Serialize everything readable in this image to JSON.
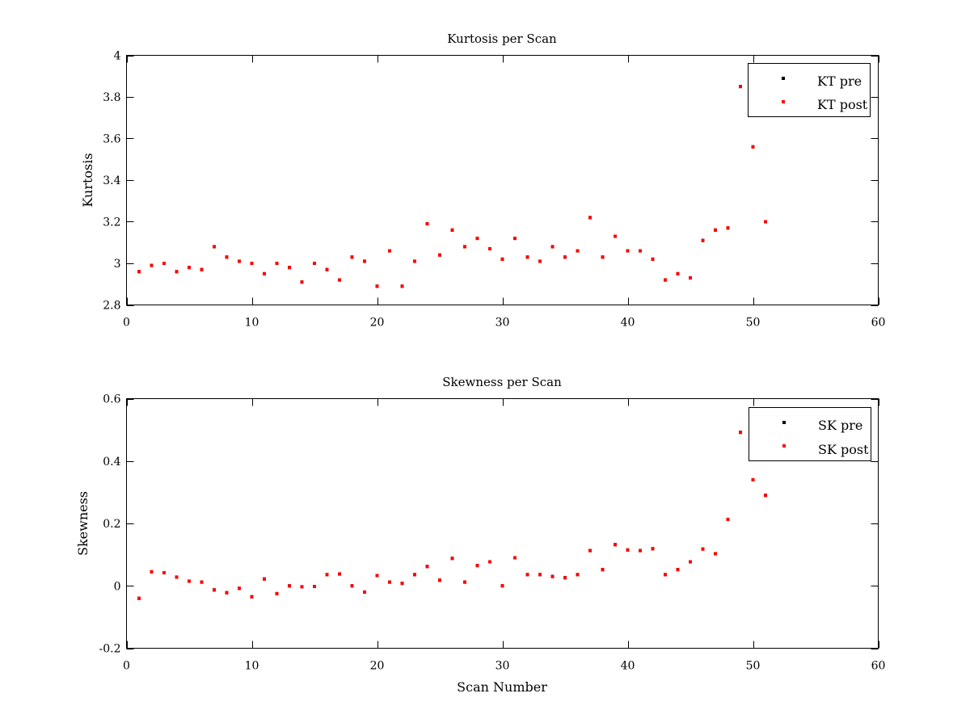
{
  "chart_data": [
    {
      "type": "scatter",
      "title": "Kurtosis per Scan",
      "xlabel": "",
      "ylabel": "Kurtosis",
      "xlim": [
        0,
        60
      ],
      "ylim": [
        2.8,
        4
      ],
      "xticks": [
        0,
        10,
        20,
        30,
        40,
        50,
        60
      ],
      "xtick_labels": [
        "0",
        "10",
        "20",
        "30",
        "40",
        "50",
        "60"
      ],
      "yticks": [
        2.8,
        3.0,
        3.2,
        3.4,
        3.6,
        3.8,
        4.0
      ],
      "ytick_labels": [
        "2.8",
        "3",
        "3.2",
        "3.4",
        "3.6",
        "3.8",
        "4"
      ],
      "grid": false,
      "legend": "top-right",
      "x": [
        1,
        2,
        3,
        4,
        5,
        6,
        7,
        8,
        9,
        10,
        11,
        12,
        13,
        14,
        15,
        16,
        17,
        18,
        19,
        20,
        21,
        22,
        23,
        24,
        25,
        26,
        27,
        28,
        29,
        30,
        31,
        32,
        33,
        34,
        35,
        36,
        37,
        38,
        39,
        40,
        41,
        42,
        43,
        44,
        45,
        46,
        47,
        48,
        49,
        50,
        51
      ],
      "series": [
        {
          "name": "KT pre",
          "color": "#000000",
          "values": [
            2.96,
            2.99,
            3.0,
            2.96,
            2.98,
            2.97,
            3.08,
            3.03,
            3.01,
            3.0,
            2.95,
            3.0,
            2.98,
            2.91,
            3.0,
            2.97,
            2.92,
            3.03,
            3.01,
            2.89,
            3.06,
            2.89,
            3.01,
            3.19,
            3.04,
            3.16,
            3.08,
            3.12,
            3.07,
            3.02,
            3.12,
            3.03,
            3.01,
            3.08,
            3.03,
            3.06,
            3.22,
            3.03,
            3.13,
            3.06,
            3.06,
            3.02,
            2.92,
            2.95,
            2.93,
            3.11,
            3.16,
            3.17,
            3.85,
            3.56,
            3.2
          ]
        },
        {
          "name": "KT post",
          "color": "#ff0000",
          "values": [
            2.96,
            2.99,
            3.0,
            2.96,
            2.98,
            2.97,
            3.08,
            3.03,
            3.01,
            3.0,
            2.95,
            3.0,
            2.98,
            2.91,
            3.0,
            2.97,
            2.92,
            3.03,
            3.01,
            2.89,
            3.06,
            2.89,
            3.01,
            3.19,
            3.04,
            3.16,
            3.08,
            3.12,
            3.07,
            3.02,
            3.12,
            3.03,
            3.01,
            3.08,
            3.03,
            3.06,
            3.22,
            3.03,
            3.13,
            3.06,
            3.06,
            3.02,
            2.92,
            2.95,
            2.93,
            3.11,
            3.16,
            3.17,
            3.85,
            3.56,
            3.2
          ]
        }
      ]
    },
    {
      "type": "scatter",
      "title": "Skewness per Scan",
      "xlabel": "Scan Number",
      "ylabel": "Skewness",
      "xlim": [
        0,
        60
      ],
      "ylim": [
        -0.2,
        0.6
      ],
      "xticks": [
        0,
        10,
        20,
        30,
        40,
        50,
        60
      ],
      "xtick_labels": [
        "0",
        "10",
        "20",
        "30",
        "40",
        "50",
        "60"
      ],
      "yticks": [
        -0.2,
        0.0,
        0.2,
        0.4,
        0.6
      ],
      "ytick_labels": [
        "-0.2",
        "0",
        "0.2",
        "0.4",
        "0.6"
      ],
      "grid": false,
      "legend": "top-right",
      "x": [
        1,
        2,
        3,
        4,
        5,
        6,
        7,
        8,
        9,
        10,
        11,
        12,
        13,
        14,
        15,
        16,
        17,
        18,
        19,
        20,
        21,
        22,
        23,
        24,
        25,
        26,
        27,
        28,
        29,
        30,
        31,
        32,
        33,
        34,
        35,
        36,
        37,
        38,
        39,
        40,
        41,
        42,
        43,
        44,
        45,
        46,
        47,
        48,
        49,
        50,
        51
      ],
      "series": [
        {
          "name": "SK pre",
          "color": "#000000",
          "values": [
            -0.04,
            0.045,
            0.042,
            0.028,
            0.015,
            0.012,
            -0.013,
            -0.022,
            -0.008,
            -0.035,
            0.022,
            -0.025,
            0.0,
            -0.003,
            -0.002,
            0.036,
            0.038,
            0.0,
            -0.02,
            0.033,
            0.012,
            0.008,
            0.036,
            0.062,
            0.018,
            0.088,
            0.012,
            0.065,
            0.077,
            0.0,
            0.09,
            0.036,
            0.036,
            0.03,
            0.026,
            0.036,
            0.113,
            0.052,
            0.132,
            0.115,
            0.113,
            0.119,
            0.036,
            0.052,
            0.077,
            0.118,
            0.103,
            0.213,
            0.492,
            0.34,
            0.29
          ]
        },
        {
          "name": "SK post",
          "color": "#ff0000",
          "values": [
            -0.04,
            0.045,
            0.042,
            0.028,
            0.015,
            0.012,
            -0.013,
            -0.022,
            -0.008,
            -0.035,
            0.022,
            -0.025,
            0.0,
            -0.003,
            -0.002,
            0.036,
            0.038,
            0.0,
            -0.02,
            0.033,
            0.012,
            0.008,
            0.036,
            0.062,
            0.018,
            0.088,
            0.012,
            0.065,
            0.077,
            0.0,
            0.09,
            0.036,
            0.036,
            0.03,
            0.026,
            0.036,
            0.113,
            0.052,
            0.132,
            0.115,
            0.113,
            0.119,
            0.036,
            0.052,
            0.077,
            0.118,
            0.103,
            0.213,
            0.492,
            0.34,
            0.29
          ]
        }
      ]
    }
  ]
}
